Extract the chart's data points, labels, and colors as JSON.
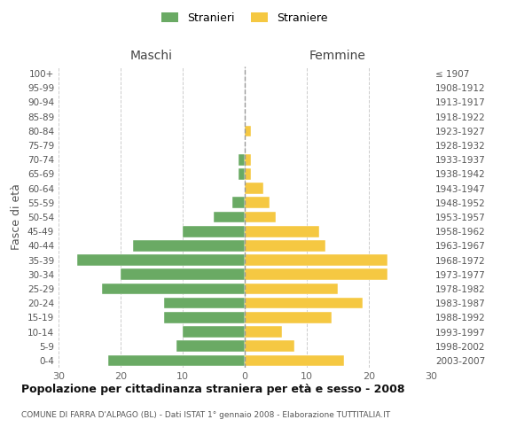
{
  "age_groups_bottom_to_top": [
    "0-4",
    "5-9",
    "10-14",
    "15-19",
    "20-24",
    "25-29",
    "30-34",
    "35-39",
    "40-44",
    "45-49",
    "50-54",
    "55-59",
    "60-64",
    "65-69",
    "70-74",
    "75-79",
    "80-84",
    "85-89",
    "90-94",
    "95-99",
    "100+"
  ],
  "birth_years_bottom_to_top": [
    "2003-2007",
    "1998-2002",
    "1993-1997",
    "1988-1992",
    "1983-1987",
    "1978-1982",
    "1973-1977",
    "1968-1972",
    "1963-1967",
    "1958-1962",
    "1953-1957",
    "1948-1952",
    "1943-1947",
    "1938-1942",
    "1933-1937",
    "1928-1932",
    "1923-1927",
    "1918-1922",
    "1913-1917",
    "1908-1912",
    "≤ 1907"
  ],
  "maschi": [
    22,
    11,
    10,
    13,
    13,
    23,
    20,
    27,
    18,
    10,
    5,
    2,
    0,
    1,
    1,
    0,
    0,
    0,
    0,
    0,
    0
  ],
  "femmine": [
    16,
    8,
    6,
    14,
    19,
    15,
    23,
    23,
    13,
    12,
    5,
    4,
    3,
    1,
    1,
    0,
    1,
    0,
    0,
    0,
    0
  ],
  "color_maschi": "#6aaa64",
  "color_femmine": "#f5c842",
  "title": "Popolazione per cittadinanza straniera per età e sesso - 2008",
  "subtitle": "COMUNE DI FARRA D'ALPAGO (BL) - Dati ISTAT 1° gennaio 2008 - Elaborazione TUTTITALIA.IT",
  "legend_maschi": "Stranieri",
  "legend_femmine": "Straniere",
  "label_maschi": "Maschi",
  "label_femmine": "Femmine",
  "ylabel_left": "Fasce di età",
  "xlim": 30,
  "background_color": "#ffffff",
  "grid_color": "#cccccc"
}
